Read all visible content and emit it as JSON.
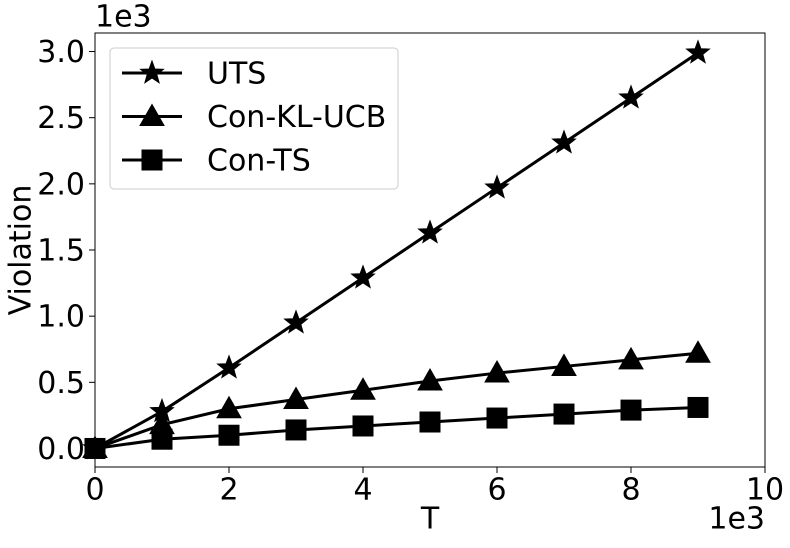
{
  "chart_data": {
    "type": "line",
    "x_label": "T",
    "y_label": "Violation",
    "x_offset": "1e3",
    "y_offset": "1e3",
    "x": [
      0,
      1,
      2,
      3,
      4,
      5,
      6,
      7,
      8,
      9
    ],
    "series": [
      {
        "name": "UTS",
        "color": "#000000",
        "marker": "star",
        "values": [
          0,
          0.28,
          0.61,
          0.95,
          1.29,
          1.63,
          1.97,
          2.31,
          2.65,
          2.99
        ]
      },
      {
        "name": "Con-KL-UCB",
        "color": "#000000",
        "marker": "triangle",
        "values": [
          0,
          0.18,
          0.3,
          0.37,
          0.44,
          0.51,
          0.57,
          0.62,
          0.67,
          0.72
        ]
      },
      {
        "name": "Con-TS",
        "color": "#000000",
        "marker": "square",
        "values": [
          0,
          0.07,
          0.1,
          0.14,
          0.17,
          0.2,
          0.23,
          0.26,
          0.29,
          0.31
        ]
      }
    ],
    "xlim": [
      0,
      10
    ],
    "xticks": [
      0,
      2,
      4,
      6,
      8,
      10
    ],
    "ylim": [
      -0.14,
      3.14
    ],
    "yticks": [
      {
        "value": 0,
        "label": "0.0"
      },
      {
        "value": 0.5,
        "label": "0.5"
      },
      {
        "value": 1,
        "label": "1.0"
      },
      {
        "value": 1.5,
        "label": "1.5"
      },
      {
        "value": 2,
        "label": "2.0"
      },
      {
        "value": 2.5,
        "label": "2.5"
      },
      {
        "value": 3,
        "label": "3.0"
      }
    ],
    "legend": "upper-left",
    "grid": false
  }
}
